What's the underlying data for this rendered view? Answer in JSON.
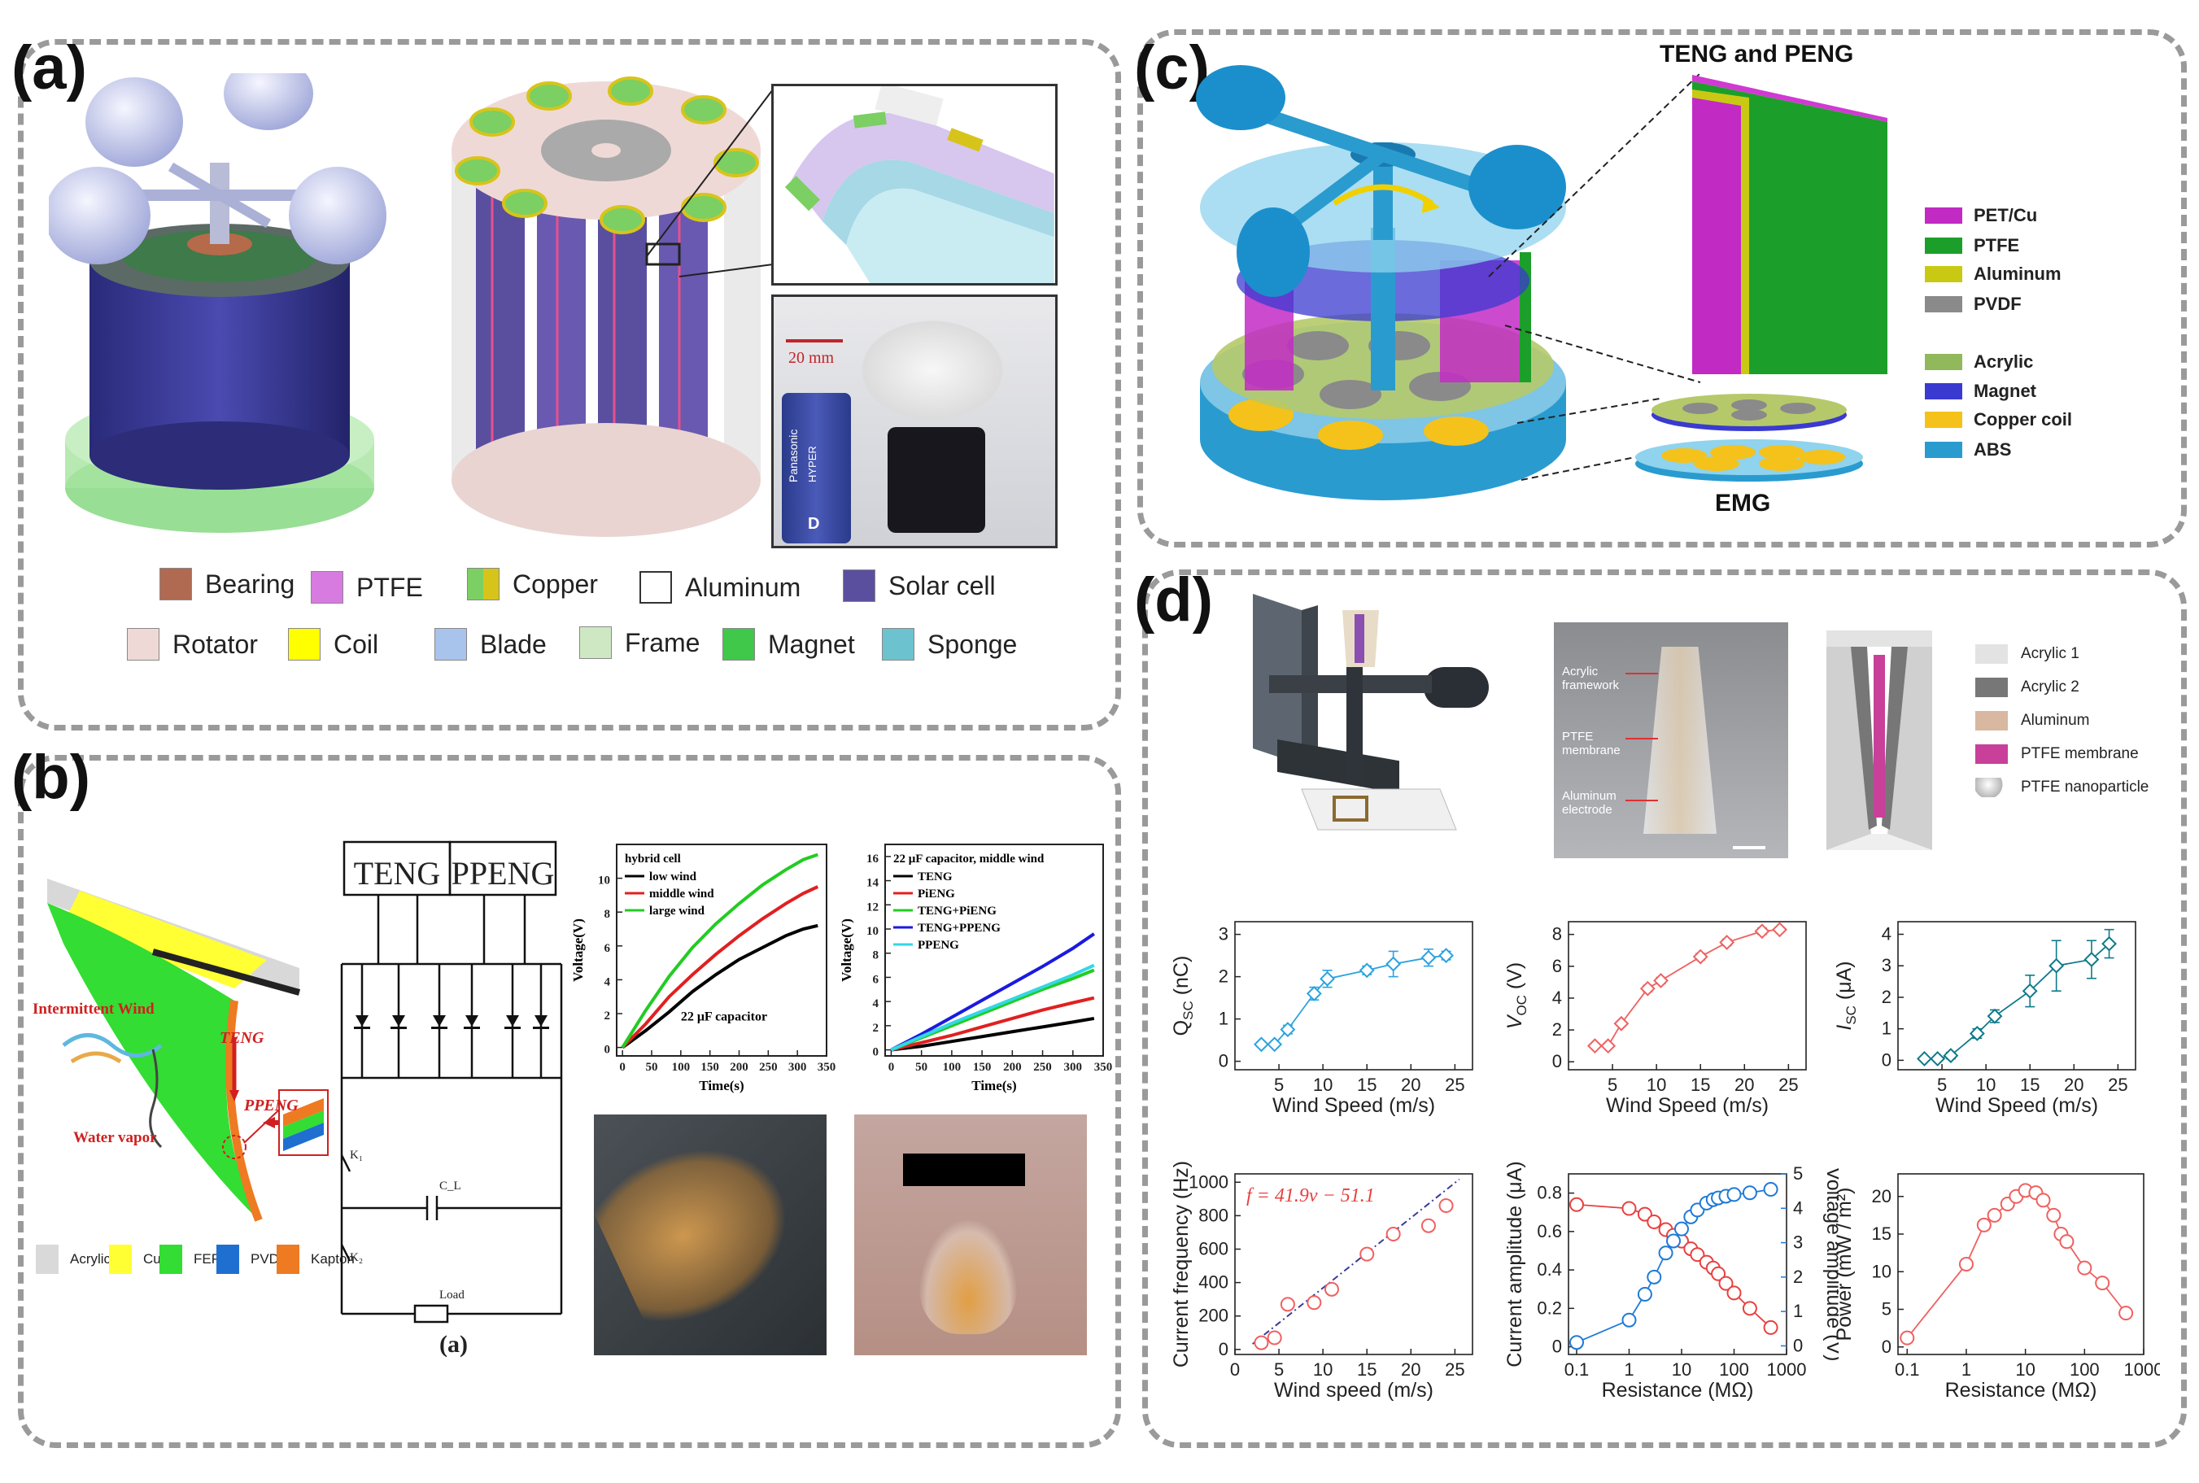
{
  "panel_labels": {
    "a": "(a)",
    "b": "(b)",
    "c": "(c)",
    "d": "(d)"
  },
  "panel_a": {
    "photo_scale": "20 mm",
    "battery_brand": "Panasonic",
    "battery_model": "HYPER",
    "battery_size": "D",
    "legend": [
      {
        "label": "Bearing",
        "color": "#b06a52"
      },
      {
        "label": "PTFE",
        "color": "#d77be0"
      },
      {
        "label": "Copper",
        "color": "#7ccf62"
      },
      {
        "label": "Aluminum",
        "color": "#ffffff"
      },
      {
        "label": "Solar cell",
        "color": "#5a4f9e"
      },
      {
        "label": "Rotator",
        "color": "#efd9d6"
      },
      {
        "label": "Coil",
        "color": "#ffff00"
      },
      {
        "label": "Blade",
        "color": "#a9c4ec"
      },
      {
        "label": "Frame",
        "color": "#cfe8c4"
      },
      {
        "label": "Magnet",
        "color": "#3fc84a"
      },
      {
        "label": "Sponge",
        "color": "#6cc3cf"
      }
    ]
  },
  "panel_b": {
    "labels": {
      "intermittent_wind": "Intermittent Wind",
      "teng": "TENG",
      "ppeng": "PPENG",
      "water_vapor": "Water vapor"
    },
    "materials": [
      {
        "label": "Acrylic",
        "color": "#d9d9d9"
      },
      {
        "label": "Cu",
        "color": "#ffff33"
      },
      {
        "label": "FEP",
        "color": "#33dd33"
      },
      {
        "label": "PVDF",
        "color": "#1f6fd0"
      },
      {
        "label": "Kapton",
        "color": "#ee7a22"
      }
    ],
    "circuit": {
      "box1": "TENG",
      "box2": "PPENG",
      "k1": "K₁",
      "cl": "C_L",
      "k2": "K₂",
      "load": "Load",
      "caption": "(a)"
    },
    "chart1": {
      "legend_title": "hybrid cell",
      "note": "22 μF capacitor"
    },
    "chart2": {
      "legend_title": "22 μF capacitor, middle wind"
    }
  },
  "panel_c": {
    "title_top": "TENG and PENG",
    "title_bottom": "EMG",
    "legend": [
      {
        "label": "PET/Cu",
        "color": "#c22ac4"
      },
      {
        "label": "PTFE",
        "color": "#1c9e2a"
      },
      {
        "label": "Aluminum",
        "color": "#c9c914"
      },
      {
        "label": "PVDF",
        "color": "#8a8a8a"
      },
      {
        "label": "Acrylic",
        "color": "#92b85c"
      },
      {
        "label": "Magnet",
        "color": "#3a3ad0"
      },
      {
        "label": "Copper coil",
        "color": "#f4c21a"
      },
      {
        "label": "ABS",
        "color": "#2a9bcf"
      }
    ]
  },
  "panel_d": {
    "photo_labels": {
      "framework": "Acrylic\nframework",
      "membrane": "PTFE\nmembrane",
      "electrode": "Aluminum\nelectrode"
    },
    "legend": [
      {
        "label": "Acrylic  1",
        "color": "#e3e3e3"
      },
      {
        "label": "Acrylic  2",
        "color": "#777777"
      },
      {
        "label": "Aluminum",
        "color": "#d8b8a0"
      },
      {
        "label": "PTFE membrane",
        "color": "#c8409a"
      },
      {
        "label": "PTFE nanoparticle",
        "color": "#ffffff"
      }
    ]
  },
  "chart_data": [
    {
      "id": "b1",
      "type": "line",
      "title": "",
      "xlabel": "Time(s)",
      "ylabel": "Voltage(V)",
      "xlim": [
        -10,
        350
      ],
      "ylim": [
        -0.5,
        12
      ],
      "xticks": [
        0,
        50,
        100,
        150,
        200,
        250,
        300,
        350
      ],
      "yticks": [
        0,
        2,
        4,
        6,
        8,
        10
      ],
      "series": [
        {
          "name": "low wind",
          "color": "#000000",
          "x": [
            0,
            40,
            80,
            120,
            160,
            200,
            240,
            280,
            310,
            335
          ],
          "y": [
            0,
            1.0,
            2.1,
            3.3,
            4.3,
            5.2,
            5.9,
            6.6,
            7.0,
            7.2
          ]
        },
        {
          "name": "middle wind",
          "color": "#e02020",
          "x": [
            0,
            40,
            80,
            120,
            160,
            200,
            240,
            280,
            310,
            335
          ],
          "y": [
            0,
            1.4,
            3.0,
            4.3,
            5.5,
            6.6,
            7.6,
            8.5,
            9.1,
            9.5
          ]
        },
        {
          "name": "large wind",
          "color": "#22cc22",
          "x": [
            0,
            40,
            80,
            120,
            160,
            200,
            240,
            280,
            310,
            335
          ],
          "y": [
            0,
            2.2,
            4.2,
            5.9,
            7.3,
            8.5,
            9.6,
            10.5,
            11.1,
            11.4
          ]
        }
      ]
    },
    {
      "id": "b2",
      "type": "line",
      "title": "",
      "xlabel": "Time(s)",
      "ylabel": "Voltage(V)",
      "xlim": [
        -10,
        350
      ],
      "ylim": [
        -0.5,
        17
      ],
      "xticks": [
        0,
        50,
        100,
        150,
        200,
        250,
        300,
        350
      ],
      "yticks": [
        0,
        2,
        4,
        6,
        8,
        10,
        12,
        14,
        16
      ],
      "series": [
        {
          "name": "TENG",
          "color": "#000000",
          "x": [
            0,
            50,
            100,
            150,
            200,
            250,
            300,
            335
          ],
          "y": [
            0,
            0.3,
            0.7,
            1.1,
            1.5,
            1.9,
            2.3,
            2.6
          ]
        },
        {
          "name": "PiENG",
          "color": "#e02020",
          "x": [
            0,
            50,
            100,
            150,
            200,
            250,
            300,
            335
          ],
          "y": [
            0,
            0.6,
            1.2,
            1.9,
            2.6,
            3.3,
            3.9,
            4.3
          ]
        },
        {
          "name": "TENG+PiENG",
          "color": "#22cc22",
          "x": [
            0,
            50,
            100,
            150,
            200,
            250,
            300,
            335
          ],
          "y": [
            0,
            1.0,
            2.0,
            3.0,
            4.0,
            5.0,
            5.9,
            6.6
          ]
        },
        {
          "name": "TENG+PPENG",
          "color": "#1a1ae0",
          "x": [
            0,
            50,
            100,
            150,
            200,
            250,
            300,
            335
          ],
          "y": [
            0,
            1.3,
            2.7,
            4.1,
            5.5,
            6.9,
            8.4,
            9.6
          ]
        },
        {
          "name": "PPENG",
          "color": "#33d7e6",
          "x": [
            0,
            50,
            100,
            150,
            200,
            250,
            300,
            335
          ],
          "y": [
            0,
            1.1,
            2.2,
            3.2,
            4.2,
            5.2,
            6.2,
            7.0
          ]
        }
      ]
    },
    {
      "id": "d1",
      "type": "line",
      "xlabel": "Wind Speed (m/s)",
      "ylabel": "Q_SC (nC)",
      "xlim": [
        0,
        27
      ],
      "ylim": [
        -0.2,
        3.3
      ],
      "xticks": [
        5,
        10,
        15,
        20,
        25
      ],
      "yticks": [
        0,
        1,
        2,
        3
      ],
      "marker": "diamond",
      "series": [
        {
          "color": "#2aa2e0",
          "x": [
            3,
            4.5,
            6,
            9,
            10.5,
            15,
            18,
            22,
            24
          ],
          "y": [
            0.4,
            0.4,
            0.75,
            1.6,
            1.95,
            2.15,
            2.3,
            2.45,
            2.5
          ],
          "err": [
            0.05,
            0.05,
            0.1,
            0.15,
            0.2,
            0.1,
            0.3,
            0.2,
            0.1
          ]
        }
      ]
    },
    {
      "id": "d2",
      "type": "line",
      "xlabel": "Wind Speed (m/s)",
      "ylabel": "V_OC (V)",
      "xlim": [
        0,
        27
      ],
      "ylim": [
        -0.5,
        8.8
      ],
      "xticks": [
        5,
        10,
        15,
        20,
        25
      ],
      "yticks": [
        0,
        2,
        4,
        6,
        8
      ],
      "marker": "diamond",
      "series": [
        {
          "color": "#f06060",
          "x": [
            3,
            4.5,
            6,
            9,
            10.5,
            15,
            18,
            22,
            24
          ],
          "y": [
            1.0,
            1.0,
            2.4,
            4.6,
            5.1,
            6.6,
            7.5,
            8.2,
            8.3
          ],
          "err": [
            0.1,
            0.1,
            0.15,
            0.2,
            0.2,
            0.2,
            0.2,
            0.2,
            0.15
          ]
        }
      ]
    },
    {
      "id": "d3",
      "type": "line",
      "xlabel": "Wind Speed (m/s)",
      "ylabel": "I_SC (μA)",
      "xlim": [
        0,
        27
      ],
      "ylim": [
        -0.3,
        4.4
      ],
      "xticks": [
        5,
        10,
        15,
        20,
        25
      ],
      "yticks": [
        0,
        1,
        2,
        3,
        4
      ],
      "marker": "diamond",
      "series": [
        {
          "color": "#0e7a8a",
          "x": [
            3,
            4.5,
            6,
            9,
            11,
            15,
            18,
            22,
            24
          ],
          "y": [
            0.05,
            0.05,
            0.15,
            0.85,
            1.4,
            2.2,
            3.0,
            3.2,
            3.7
          ],
          "err": [
            0.05,
            0.05,
            0.1,
            0.15,
            0.2,
            0.5,
            0.8,
            0.6,
            0.45
          ]
        }
      ]
    },
    {
      "id": "d4",
      "type": "scatter",
      "xlabel": "Wind speed (m/s)",
      "ylabel": "Current frequency (Hz)",
      "annotation": "f = 41.9v − 51.1",
      "xlim": [
        0,
        27
      ],
      "ylim": [
        -30,
        1050
      ],
      "xticks": [
        0,
        5,
        10,
        15,
        20,
        25
      ],
      "yticks": [
        0,
        200,
        400,
        600,
        800,
        1000
      ],
      "fit": {
        "slope": 41.9,
        "intercept": -51.1,
        "color": "#3a3a9a"
      },
      "series": [
        {
          "color": "#f06060",
          "x": [
            3,
            4.5,
            6,
            9,
            11,
            15,
            18,
            22,
            24
          ],
          "y": [
            40,
            70,
            270,
            280,
            360,
            570,
            690,
            740,
            860
          ],
          "err": [
            20,
            20,
            25,
            25,
            25,
            20,
            20,
            20,
            20
          ]
        }
      ]
    },
    {
      "id": "d5",
      "type": "line",
      "xlabel": "Resistance (MΩ)",
      "ylabel": "Current amplitude (μA)",
      "ylabel_right": "Voltage amplitude (V)",
      "xscale": "log",
      "xlim": [
        0.07,
        1000
      ],
      "ylim": [
        -0.04,
        0.9
      ],
      "ylim_right": [
        -0.25,
        5
      ],
      "xticks": [
        0.1,
        1,
        10,
        100,
        1000
      ],
      "yticks": [
        0,
        0.2,
        0.4,
        0.6,
        0.8
      ],
      "yticks_right": [
        0,
        1,
        2,
        3,
        4,
        5
      ],
      "series": [
        {
          "name": "current",
          "axis": "left",
          "color": "#e84040",
          "x": [
            0.1,
            1,
            2,
            3,
            5,
            7,
            10,
            15,
            20,
            30,
            40,
            50,
            70,
            100,
            200,
            500
          ],
          "y": [
            0.74,
            0.72,
            0.69,
            0.65,
            0.61,
            0.58,
            0.55,
            0.51,
            0.48,
            0.44,
            0.41,
            0.38,
            0.33,
            0.28,
            0.2,
            0.1
          ]
        },
        {
          "name": "voltage",
          "axis": "right",
          "color": "#1f7ad6",
          "x": [
            0.1,
            1,
            2,
            3,
            5,
            7,
            10,
            15,
            20,
            30,
            40,
            50,
            70,
            100,
            200,
            500
          ],
          "y": [
            0.1,
            0.75,
            1.5,
            2.0,
            2.7,
            3.05,
            3.4,
            3.75,
            3.95,
            4.15,
            4.25,
            4.3,
            4.35,
            4.4,
            4.45,
            4.55
          ]
        }
      ]
    },
    {
      "id": "d6",
      "type": "line",
      "xlabel": "Resistance (MΩ)",
      "ylabel": "Power (mW / m²)",
      "xscale": "log",
      "xlim": [
        0.07,
        1000
      ],
      "ylim": [
        -1,
        23
      ],
      "xticks": [
        0.1,
        1,
        10,
        100,
        1000
      ],
      "yticks": [
        0,
        5,
        10,
        15,
        20
      ],
      "series": [
        {
          "color": "#f06060",
          "x": [
            0.1,
            1,
            2,
            3,
            5,
            7,
            10,
            15,
            20,
            30,
            40,
            50,
            100,
            200,
            500
          ],
          "y": [
            1.2,
            11,
            16.2,
            17.5,
            19,
            20,
            20.8,
            20.5,
            19.5,
            17.5,
            15,
            14,
            10.5,
            8.5,
            4.5
          ]
        }
      ]
    }
  ]
}
